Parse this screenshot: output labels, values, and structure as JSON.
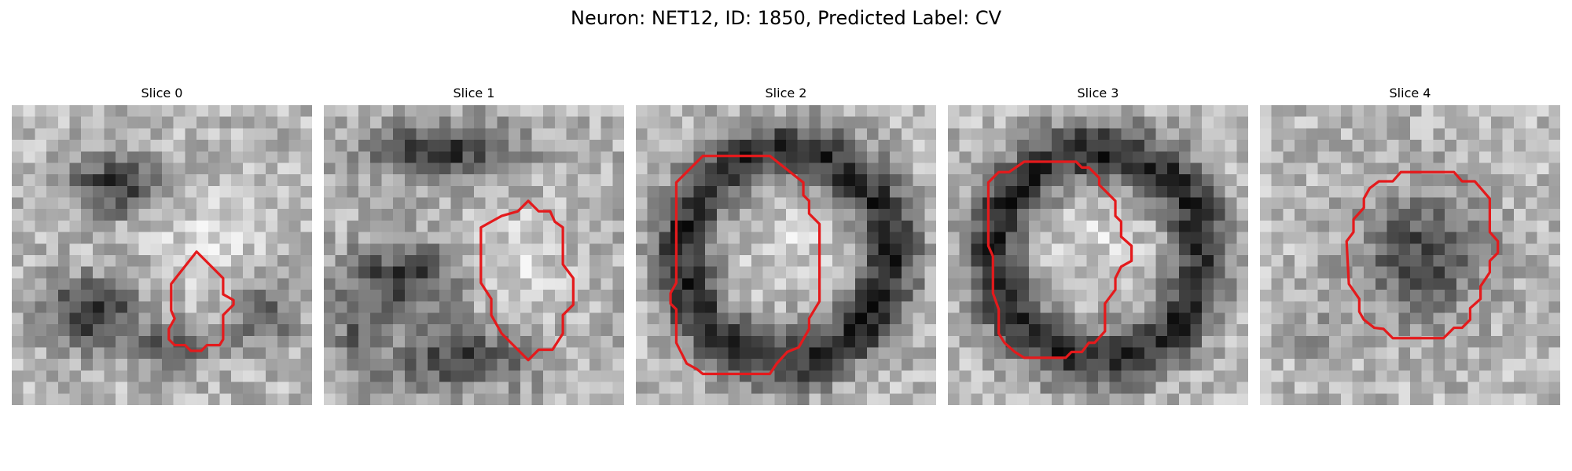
{
  "figure": {
    "title": "Neuron: NET12, ID: 1850, Predicted Label: CV"
  },
  "panels": [
    {
      "title": "Slice 0",
      "pattern": "dark-lower-band",
      "contour": [
        [
          16.0,
          12.7
        ],
        [
          18.3,
          15.0
        ],
        [
          18.3,
          16.4
        ],
        [
          19.2,
          16.9
        ],
        [
          19.2,
          17.3
        ],
        [
          18.3,
          18.2
        ],
        [
          18.3,
          20.3
        ],
        [
          18.0,
          20.8
        ],
        [
          16.9,
          20.8
        ],
        [
          16.4,
          21.3
        ],
        [
          15.5,
          21.3
        ],
        [
          15.0,
          20.8
        ],
        [
          14.1,
          20.8
        ],
        [
          13.6,
          20.3
        ],
        [
          13.6,
          19.4
        ],
        [
          14.1,
          18.5
        ],
        [
          13.8,
          17.8
        ],
        [
          13.8,
          15.5
        ],
        [
          14.5,
          14.6
        ]
      ]
    },
    {
      "title": "Slice 1",
      "pattern": "dark-ring-top-bottom",
      "contour": [
        [
          17.7,
          8.3
        ],
        [
          18.6,
          9.2
        ],
        [
          19.6,
          9.2
        ],
        [
          20.0,
          10.1
        ],
        [
          20.7,
          10.6
        ],
        [
          20.7,
          13.8
        ],
        [
          21.6,
          15.0
        ],
        [
          21.6,
          17.3
        ],
        [
          20.7,
          18.2
        ],
        [
          20.7,
          19.8
        ],
        [
          19.8,
          21.2
        ],
        [
          18.6,
          21.2
        ],
        [
          17.7,
          22.1
        ],
        [
          16.8,
          21.2
        ],
        [
          15.4,
          19.8
        ],
        [
          14.5,
          18.2
        ],
        [
          14.5,
          16.8
        ],
        [
          13.6,
          15.4
        ],
        [
          13.6,
          10.6
        ],
        [
          14.5,
          10.1
        ],
        [
          15.4,
          9.6
        ],
        [
          16.8,
          9.2
        ]
      ]
    },
    {
      "title": "Slice 2",
      "pattern": "dark-ring",
      "contour": [
        [
          7.2,
          4.4
        ],
        [
          11.6,
          4.4
        ],
        [
          14.5,
          6.7
        ],
        [
          14.5,
          7.8
        ],
        [
          15.0,
          8.3
        ],
        [
          15.0,
          9.4
        ],
        [
          15.9,
          10.3
        ],
        [
          15.9,
          17.0
        ],
        [
          15.0,
          18.5
        ],
        [
          15.0,
          19.4
        ],
        [
          14.1,
          21.0
        ],
        [
          13.1,
          21.4
        ],
        [
          12.2,
          22.4
        ],
        [
          11.6,
          23.3
        ],
        [
          5.8,
          23.3
        ],
        [
          5.3,
          22.9
        ],
        [
          4.4,
          22.4
        ],
        [
          3.9,
          21.4
        ],
        [
          3.5,
          20.6
        ],
        [
          3.5,
          17.7
        ],
        [
          3.0,
          17.2
        ],
        [
          3.0,
          16.3
        ],
        [
          3.5,
          15.4
        ],
        [
          3.5,
          6.7
        ],
        [
          5.8,
          4.4
        ]
      ]
    },
    {
      "title": "Slice 3",
      "pattern": "dark-ring",
      "contour": [
        [
          7.2,
          4.9
        ],
        [
          11.1,
          4.9
        ],
        [
          11.6,
          5.4
        ],
        [
          12.2,
          5.4
        ],
        [
          13.1,
          6.3
        ],
        [
          13.1,
          6.9
        ],
        [
          14.5,
          8.3
        ],
        [
          14.5,
          9.6
        ],
        [
          15.0,
          10.1
        ],
        [
          15.0,
          11.4
        ],
        [
          15.9,
          12.2
        ],
        [
          15.9,
          13.5
        ],
        [
          15.0,
          14.0
        ],
        [
          14.5,
          15.0
        ],
        [
          14.5,
          16.0
        ],
        [
          13.6,
          17.2
        ],
        [
          13.6,
          19.6
        ],
        [
          12.7,
          20.6
        ],
        [
          12.2,
          20.6
        ],
        [
          11.6,
          21.4
        ],
        [
          10.7,
          21.4
        ],
        [
          10.2,
          21.9
        ],
        [
          6.6,
          21.9
        ],
        [
          5.8,
          21.4
        ],
        [
          4.9,
          20.6
        ],
        [
          4.4,
          19.8
        ],
        [
          4.4,
          17.7
        ],
        [
          3.9,
          16.3
        ],
        [
          3.9,
          13.1
        ],
        [
          3.5,
          12.2
        ],
        [
          3.5,
          6.7
        ],
        [
          4.4,
          5.8
        ],
        [
          5.3,
          5.8
        ],
        [
          6.6,
          4.9
        ]
      ]
    },
    {
      "title": "Slice 4",
      "pattern": "dark-blob",
      "contour": [
        [
          14.5,
          5.8
        ],
        [
          16.8,
          5.8
        ],
        [
          17.5,
          6.6
        ],
        [
          18.6,
          6.6
        ],
        [
          19.9,
          8.1
        ],
        [
          19.9,
          11.0
        ],
        [
          20.6,
          11.8
        ],
        [
          20.6,
          12.8
        ],
        [
          19.9,
          13.5
        ],
        [
          19.9,
          14.5
        ],
        [
          19.1,
          15.7
        ],
        [
          19.1,
          16.8
        ],
        [
          18.2,
          17.6
        ],
        [
          18.2,
          18.6
        ],
        [
          17.5,
          19.3
        ],
        [
          16.8,
          19.3
        ],
        [
          15.9,
          20.2
        ],
        [
          11.5,
          20.2
        ],
        [
          10.7,
          19.4
        ],
        [
          9.9,
          19.3
        ],
        [
          9.0,
          18.6
        ],
        [
          8.6,
          17.9
        ],
        [
          8.6,
          16.8
        ],
        [
          7.7,
          15.5
        ],
        [
          7.5,
          11.8
        ],
        [
          8.1,
          11.0
        ],
        [
          8.1,
          9.9
        ],
        [
          9.0,
          8.9
        ],
        [
          9.0,
          8.1
        ],
        [
          9.5,
          7.2
        ],
        [
          10.3,
          6.6
        ],
        [
          11.5,
          6.6
        ],
        [
          12.2,
          5.8
        ]
      ]
    }
  ],
  "style": {
    "contour_color": "#e41a1c",
    "contour_width": 0.22
  }
}
